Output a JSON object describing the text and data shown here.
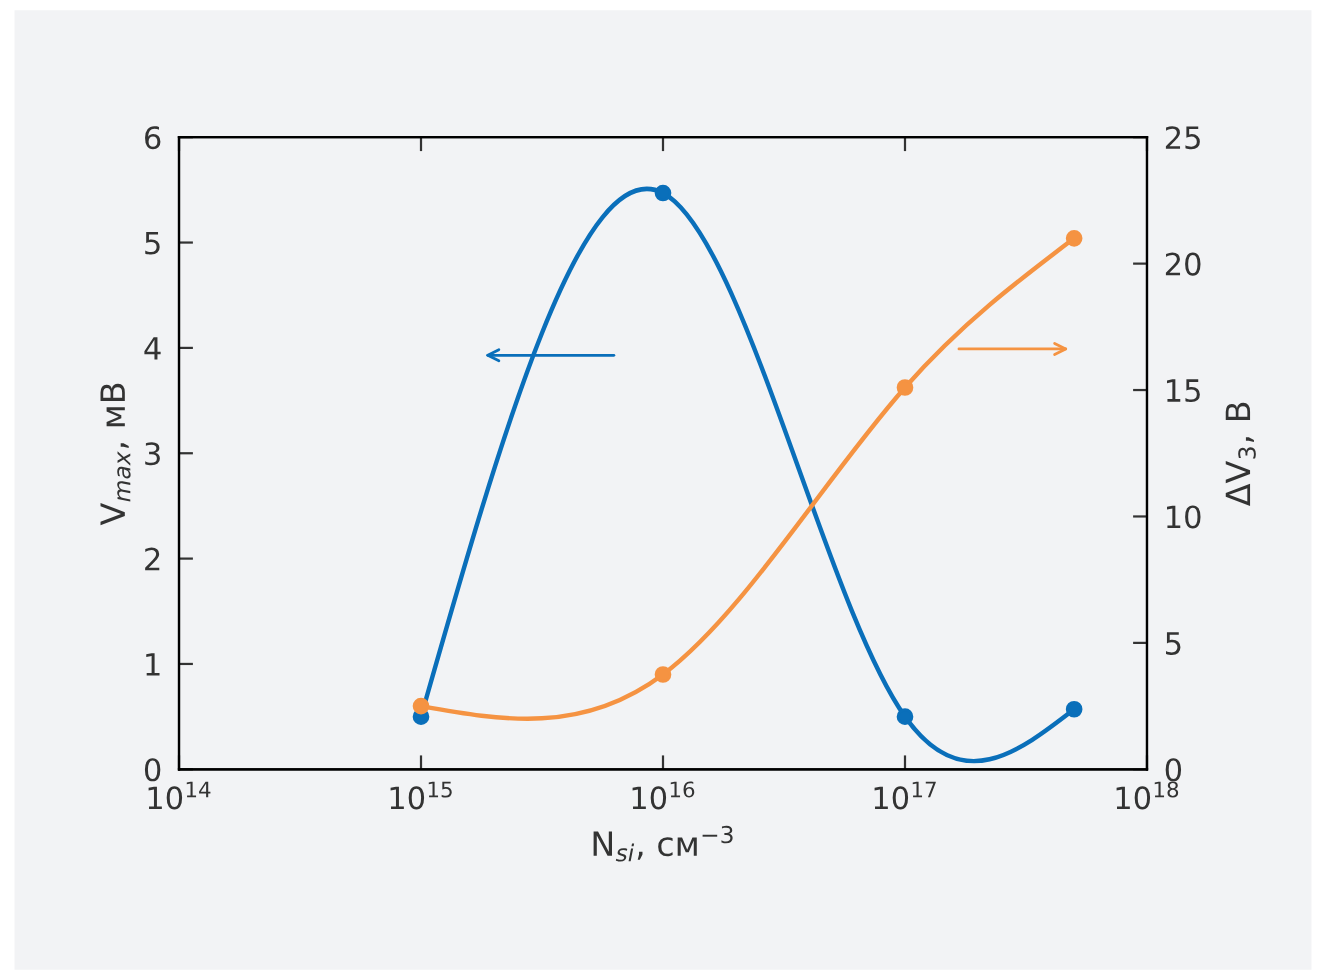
{
  "chart_data": {
    "type": "line",
    "xlabel": "N$_{si}$, см$^{−3}$",
    "ylabel": "V$_{max}$, мВ",
    "y2label": "ΔV$_{3}$, В",
    "x": [
      1000000000000000.0,
      1e+16,
      1e+17,
      5e+17
    ],
    "series": [
      {
        "color": "#0a6fba",
        "values": [
          0.5,
          5.47,
          0.5,
          0.57
        ]
      },
      {
        "color": "#f59342",
        "axis": "y2",
        "values": [
          2.5,
          3.75,
          15.1,
          21.0
        ]
      }
    ],
    "log": "x",
    "xlim": [
      100000000000000.0,
      1e+18
    ],
    "xticks": [
      {
        "value": 100000000000000.0,
        "label": "10$^{14}$"
      },
      {
        "value": 1000000000000000.0,
        "label": "10$^{15}$"
      },
      {
        "value": 1e+16,
        "label": "10$^{16}$"
      },
      {
        "value": 1e+17,
        "label": "10$^{17}$"
      },
      {
        "value": 1e+18,
        "label": "10$^{18}$"
      }
    ],
    "ylim": [
      0,
      6
    ],
    "yticks": [
      0,
      1,
      2,
      3,
      4,
      5,
      6
    ],
    "y2lim": [
      0,
      25
    ],
    "y2ticks": [
      0,
      5,
      10,
      15,
      20,
      25
    ],
    "marker": "circle",
    "line_style": "solid",
    "grid": false,
    "legend": false
  }
}
